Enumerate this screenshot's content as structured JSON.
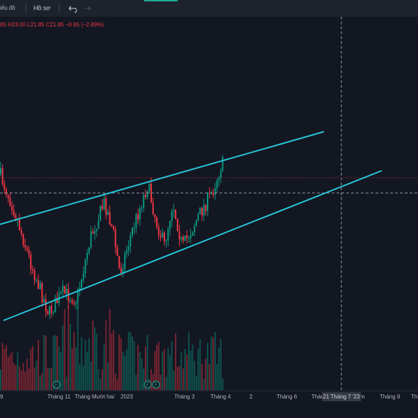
{
  "toolbar": {
    "chart_menu": "iểu đồ",
    "profile_menu": "Hồ sơ"
  },
  "legend": "65 H23.00 L21.85 C21.85 −0.65 (−2.89%)",
  "markers": [
    "F",
    "F",
    "F"
  ],
  "x_axis": {
    "labels": [
      "9",
      "Tháng 11",
      "Tháng Mười hai",
      "2023",
      "Tháng 3",
      "Tháng 4",
      "2",
      "Tháng 6",
      "Thán",
      "m",
      "Tháng 9",
      "Thán"
    ],
    "crosshair_label": "21 Tháng 7 '23"
  }
}
